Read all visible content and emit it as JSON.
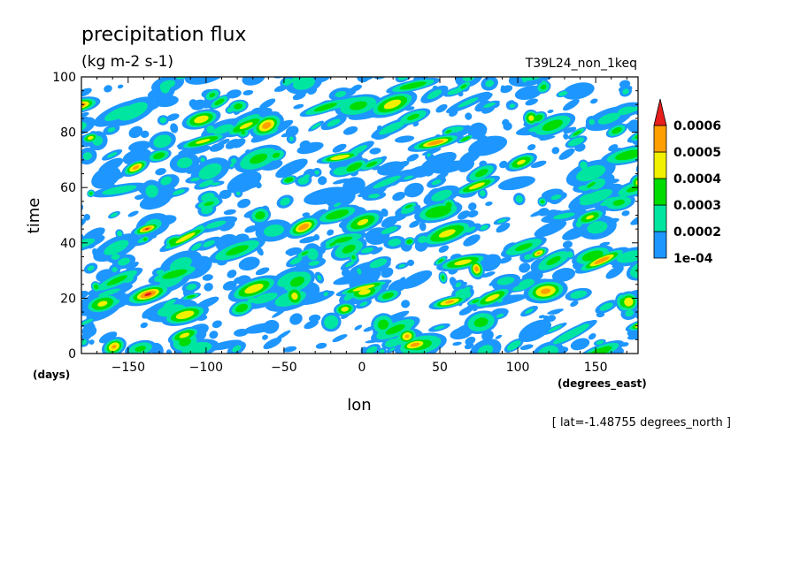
{
  "chart_data": {
    "type": "heatmap",
    "title": "precipitation flux",
    "units": "(kg m-2 s-1)",
    "run_label": "T39L24_non_1keq",
    "xlabel": "lon",
    "ylabel": "time",
    "x_units": "(degrees_east)",
    "y_units": "(days)",
    "subtitle": "[ lat=-1.48755 degrees_north ]",
    "xlim": [
      -180,
      177.1875
    ],
    "ylim": [
      0,
      100
    ],
    "x_ticks": [
      -150,
      -100,
      -50,
      0,
      50,
      100,
      150
    ],
    "y_ticks": [
      0,
      20,
      40,
      60,
      80,
      100
    ],
    "colorbar": {
      "levels": [
        0.0001,
        0.0002,
        0.0003,
        0.0004,
        0.0005,
        0.0006
      ],
      "level_labels": [
        "1e-04",
        "0.0002",
        "0.0003",
        "0.0004",
        "0.0005",
        "0.0006"
      ],
      "colors": [
        "#1e96ff",
        "#00e6a0",
        "#00dc00",
        "#f0f000",
        "#ffa000",
        "#e61e1e"
      ],
      "extend": "max"
    },
    "field_description": "eastward-propagating convective precipitation streaks over longitude and time"
  }
}
